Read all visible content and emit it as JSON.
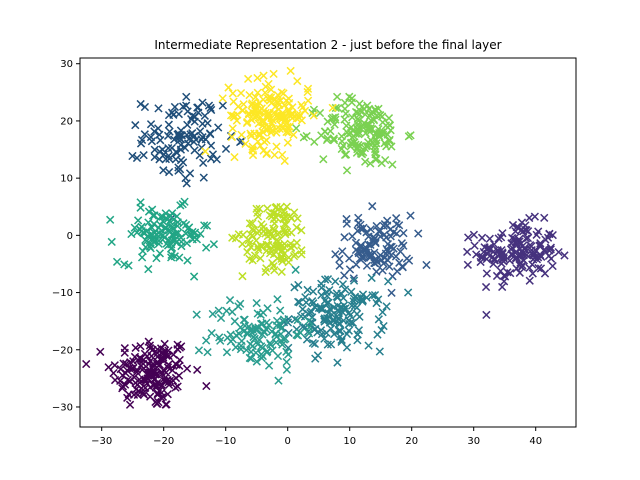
{
  "chart_data": {
    "type": "scatter",
    "title": "Intermediate Representation 2 - just before the final layer",
    "xlabel": "",
    "ylabel": "",
    "xlim": [
      -33.5,
      46.5
    ],
    "ylim": [
      -33.5,
      31
    ],
    "xticks": [
      -30,
      -20,
      -10,
      0,
      10,
      20,
      30,
      40
    ],
    "yticks": [
      -30,
      -20,
      -10,
      0,
      10,
      20,
      30
    ],
    "grid": false,
    "marker": "x",
    "clusters": [
      {
        "color": "#440154",
        "center": [
          -22,
          -24
        ],
        "spread": [
          3.2,
          3.2
        ],
        "count": 160
      },
      {
        "color": "#46327e",
        "center": [
          37,
          -3
        ],
        "spread": [
          3.2,
          2.6
        ],
        "count": 150
      },
      {
        "color": "#365c8d",
        "center": [
          14,
          -2
        ],
        "spread": [
          3.0,
          2.8
        ],
        "count": 110
      },
      {
        "color": "#277f8e",
        "center": [
          8,
          -14
        ],
        "spread": [
          3.8,
          3.0
        ],
        "count": 150
      },
      {
        "color": "#1f4e79",
        "center": [
          -17,
          17
        ],
        "spread": [
          3.2,
          3.6
        ],
        "count": 110
      },
      {
        "color": "#21a585",
        "center": [
          -20,
          0
        ],
        "spread": [
          3.6,
          2.4
        ],
        "count": 120
      },
      {
        "color": "#2a9d8f",
        "center": [
          -5,
          -17
        ],
        "spread": [
          3.8,
          3.2
        ],
        "count": 110
      },
      {
        "color": "#7ad151",
        "center": [
          12,
          18
        ],
        "spread": [
          3.4,
          3.0
        ],
        "count": 150
      },
      {
        "color": "#bddf26",
        "center": [
          -2,
          0
        ],
        "spread": [
          2.6,
          3.0
        ],
        "count": 120
      },
      {
        "color": "#fde725",
        "center": [
          -3,
          21
        ],
        "spread": [
          3.2,
          3.0
        ],
        "count": 170
      }
    ]
  }
}
